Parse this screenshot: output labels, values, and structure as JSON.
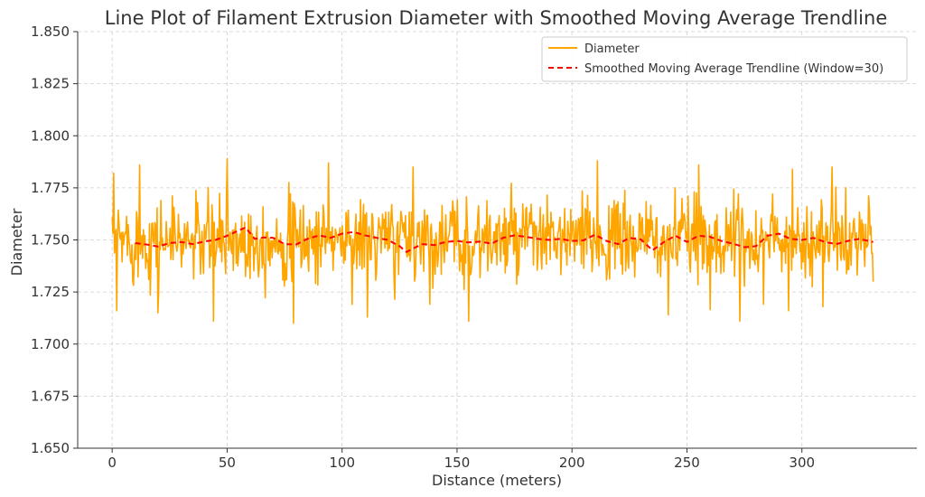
{
  "chart_data": {
    "type": "line",
    "title": "Line Plot of Filament Extrusion Diameter with Smoothed Moving Average Trendline",
    "xlabel": "Distance (meters)",
    "ylabel": "Diameter",
    "xlim": [
      -15,
      350
    ],
    "ylim": [
      1.65,
      1.85
    ],
    "grid": true,
    "legend_position": "top-right",
    "x_ticks": [
      0,
      50,
      100,
      150,
      200,
      250,
      300
    ],
    "x_tick_labels": [
      "0",
      "50",
      "100",
      "150",
      "200",
      "250",
      "300"
    ],
    "y_ticks": [
      1.65,
      1.675,
      1.7,
      1.725,
      1.75,
      1.775,
      1.8,
      1.825,
      1.85
    ],
    "y_tick_labels": [
      "1.650",
      "1.675",
      "1.700",
      "1.725",
      "1.750",
      "1.775",
      "1.800",
      "1.825",
      "1.850"
    ],
    "series": [
      {
        "name": "Diameter",
        "color": "#FFA500",
        "style": "solid",
        "generator": {
          "x_start": 0,
          "x_end": 331,
          "n_points": 1000,
          "mean": 1.75,
          "std": 0.01,
          "notable_points": [
            {
              "x": 0.8,
              "y": 1.782
            },
            {
              "x": 2.0,
              "y": 1.716
            },
            {
              "x": 12.0,
              "y": 1.786
            },
            {
              "x": 20.0,
              "y": 1.715
            },
            {
              "x": 44.0,
              "y": 1.711
            },
            {
              "x": 50.0,
              "y": 1.789
            },
            {
              "x": 79.0,
              "y": 1.71
            },
            {
              "x": 94.0,
              "y": 1.787
            },
            {
              "x": 111.0,
              "y": 1.713
            },
            {
              "x": 131.0,
              "y": 1.785
            },
            {
              "x": 155.0,
              "y": 1.711
            },
            {
              "x": 211.0,
              "y": 1.788
            },
            {
              "x": 242.0,
              "y": 1.714
            },
            {
              "x": 255.0,
              "y": 1.786
            },
            {
              "x": 273.0,
              "y": 1.711
            },
            {
              "x": 296.0,
              "y": 1.784
            },
            {
              "x": 313.0,
              "y": 1.785
            },
            {
              "x": 331.0,
              "y": 1.73
            }
          ]
        }
      },
      {
        "name": "Smoothed Moving Average Trendline (Window=30)",
        "color": "#FF0000",
        "style": "dashed",
        "x": [
          10,
          15,
          20,
          25,
          30,
          35,
          40,
          45,
          50,
          55,
          58,
          62,
          66,
          70,
          75,
          80,
          85,
          90,
          95,
          100,
          105,
          110,
          115,
          120,
          125,
          128,
          132,
          135,
          140,
          145,
          150,
          155,
          160,
          165,
          170,
          175,
          180,
          185,
          190,
          195,
          200,
          205,
          210,
          215,
          220,
          225,
          230,
          235,
          240,
          245,
          250,
          255,
          260,
          265,
          270,
          275,
          280,
          285,
          290,
          295,
          300,
          305,
          310,
          315,
          320,
          325,
          331
        ],
        "values": [
          1.7485,
          1.7478,
          1.7468,
          1.7485,
          1.749,
          1.748,
          1.7492,
          1.75,
          1.752,
          1.7545,
          1.756,
          1.7505,
          1.7512,
          1.751,
          1.748,
          1.7478,
          1.7505,
          1.7522,
          1.751,
          1.753,
          1.7538,
          1.7522,
          1.751,
          1.75,
          1.747,
          1.7442,
          1.7465,
          1.748,
          1.7475,
          1.749,
          1.7495,
          1.7488,
          1.7492,
          1.7482,
          1.751,
          1.7522,
          1.7515,
          1.7505,
          1.75,
          1.7505,
          1.7495,
          1.7498,
          1.7525,
          1.7495,
          1.748,
          1.751,
          1.7502,
          1.745,
          1.749,
          1.752,
          1.749,
          1.752,
          1.7515,
          1.7495,
          1.7482,
          1.7465,
          1.747,
          1.752,
          1.753,
          1.7505,
          1.75,
          1.751,
          1.749,
          1.748,
          1.7495,
          1.7505,
          1.749
        ]
      }
    ]
  }
}
